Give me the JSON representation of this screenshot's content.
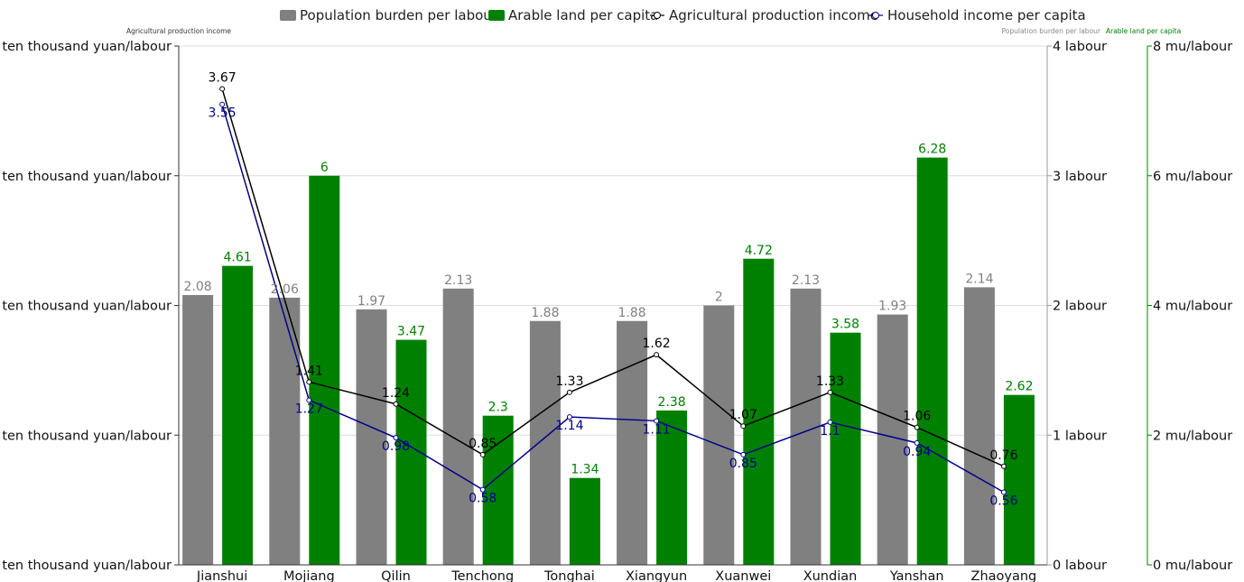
{
  "chart_data": {
    "type": "bar",
    "categories": [
      "Jianshui",
      "Mojiang",
      "Qilin",
      "Tenchong",
      "Tonghai",
      "Xiangyun",
      "Xuanwei",
      "Xundian",
      "Yanshan",
      "Zhaoyang"
    ],
    "series": [
      {
        "name": "Population burden per labour",
        "kind": "bar",
        "axis": "right1",
        "color": "#808080",
        "values": [
          2.08,
          2.06,
          1.97,
          2.13,
          1.88,
          1.88,
          2,
          2.13,
          1.93,
          2.14
        ],
        "labels": [
          "2.08",
          "2.06",
          "1.97",
          "2.13",
          "1.88",
          "1.88",
          "2",
          "2.13",
          "1.93",
          "2.14"
        ]
      },
      {
        "name": "Arable land per capita",
        "kind": "bar",
        "axis": "right2",
        "color": "#008000",
        "values": [
          4.61,
          6,
          3.47,
          2.3,
          1.34,
          2.38,
          4.72,
          3.58,
          6.28,
          2.62
        ],
        "labels": [
          "4.61",
          "6",
          "3.47",
          "2.3",
          "1.34",
          "2.38",
          "4.72",
          "3.58",
          "6.28",
          "2.62"
        ]
      },
      {
        "name": "Agricultural production income",
        "kind": "line",
        "axis": "left",
        "color": "#000000",
        "values": [
          3.67,
          1.41,
          1.24,
          0.85,
          1.33,
          1.62,
          1.07,
          1.33,
          1.06,
          0.76
        ],
        "labels": [
          "3.67",
          "1.41",
          "1.24",
          "0.85",
          "1.33",
          "1.62",
          "1.07",
          "1.33",
          "1.06",
          "0.76"
        ]
      },
      {
        "name": "Household income per capita",
        "kind": "line",
        "axis": "left",
        "color": "#00008B",
        "values": [
          3.55,
          1.27,
          0.98,
          0.58,
          1.14,
          1.11,
          0.85,
          1.1,
          0.94,
          0.56
        ],
        "labels": [
          "3.55",
          "1.27",
          "0.98",
          "0.58",
          "1.14",
          "1.11",
          "0.85",
          "1.1",
          "0.94",
          "0.56"
        ]
      }
    ],
    "axes": {
      "left": {
        "title": "Agricultural production income",
        "range": [
          0,
          4
        ],
        "tick_labels": [
          "ten thousand yuan/labour",
          "ten thousand yuan/labour",
          "ten thousand yuan/labour",
          "ten thousand yuan/labour",
          "ten thousand yuan/labour"
        ]
      },
      "right1": {
        "title": "Population burden per labour",
        "range": [
          0,
          4
        ],
        "tick_labels": [
          "0 labour",
          "1 labour",
          "2 labour",
          "3 labour",
          "4 labour"
        ]
      },
      "right2": {
        "title": "Arable land per capita",
        "range": [
          0,
          8
        ],
        "tick_labels": [
          "0 mu/labour",
          "2 mu/labour",
          "4 mu/labour",
          "6 mu/labour",
          "8 mu/labour"
        ]
      }
    },
    "legend_position": "top",
    "grid": true
  }
}
